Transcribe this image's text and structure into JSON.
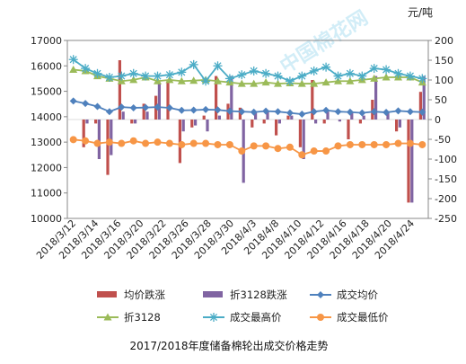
{
  "chart_data": {
    "type": "bar+line",
    "title": "2017/2018年度储备棉轮出成交价格走势",
    "unit_label": "元/吨",
    "watermark": "中国棉花网",
    "x_tick_labels": [
      "2018/3/12",
      "2018/3/14",
      "2018/3/16",
      "2018/3/20",
      "2018/3/22",
      "2018/3/26",
      "2018/3/28",
      "2018/3/30",
      "2018/4/3",
      "2018/4/8",
      "2018/4/10",
      "2018/4/12",
      "2018/4/16",
      "2018/4/18",
      "2018/4/20",
      "2018/4/24"
    ],
    "y_left": {
      "min": 10000,
      "max": 17000,
      "ticks": [
        "10000",
        "11000",
        "12000",
        "13000",
        "14000",
        "15000",
        "16000",
        "17000"
      ]
    },
    "y_right": {
      "min": -250,
      "max": 200,
      "ticks": [
        "-250",
        "-200",
        "-150",
        "-100",
        "-50",
        "0",
        "50",
        "100",
        "150",
        "200"
      ]
    },
    "x_count": 30,
    "series": [
      {
        "name": "均价跌涨",
        "kind": "bar",
        "axis": "right",
        "color": "#c0504d",
        "values": [
          0,
          -70,
          -10,
          -140,
          150,
          -10,
          40,
          60,
          100,
          -110,
          -20,
          10,
          110,
          40,
          30,
          -20,
          -10,
          -40,
          10,
          -70,
          100,
          -10,
          0,
          -50,
          -10,
          50,
          0,
          -30,
          -210,
          70
        ]
      },
      {
        "name": "折3128跌涨",
        "kind": "bar",
        "axis": "right",
        "color": "#8064a2",
        "values": [
          0,
          -10,
          -100,
          -90,
          20,
          -10,
          20,
          90,
          0,
          -30,
          -15,
          -30,
          10,
          110,
          -160,
          20,
          20,
          -10,
          10,
          -100,
          -10,
          20,
          -5,
          20,
          10,
          110,
          20,
          -20,
          -210,
          110
        ]
      },
      {
        "name": "成交均价",
        "kind": "line",
        "axis": "left",
        "color": "#4f81bd",
        "marker": "diamond",
        "values": [
          14620,
          14520,
          14400,
          14200,
          14380,
          14350,
          14360,
          14380,
          14350,
          14250,
          14260,
          14280,
          14270,
          14220,
          14200,
          14180,
          14220,
          14200,
          14150,
          14100,
          14200,
          14250,
          14200,
          14180,
          14150,
          14200,
          14170,
          14230,
          14200,
          14180
        ]
      },
      {
        "name": "折3128",
        "kind": "line",
        "axis": "left",
        "color": "#9bbb59",
        "marker": "triangle",
        "values": [
          15850,
          15800,
          15600,
          15500,
          15400,
          15450,
          15550,
          15400,
          15450,
          15400,
          15420,
          15450,
          15400,
          15350,
          15300,
          15300,
          15350,
          15300,
          15320,
          15300,
          15300,
          15350,
          15400,
          15400,
          15450,
          15500,
          15550,
          15550,
          15550,
          15350
        ]
      },
      {
        "name": "成交最高价",
        "kind": "line",
        "axis": "left",
        "color": "#4bacc6",
        "marker": "star",
        "values": [
          16250,
          15900,
          15700,
          15550,
          15600,
          15700,
          15600,
          15600,
          15650,
          15750,
          16050,
          15400,
          16000,
          15500,
          15650,
          15800,
          15700,
          15600,
          15400,
          15600,
          15800,
          15950,
          15600,
          15700,
          15600,
          15900,
          15850,
          15700,
          15600,
          15500
        ]
      },
      {
        "name": "成交最低价",
        "kind": "line",
        "axis": "left",
        "color": "#f79646",
        "marker": "circle",
        "values": [
          13100,
          13050,
          12950,
          13000,
          12950,
          13050,
          12950,
          13000,
          12950,
          12900,
          12950,
          12950,
          12900,
          12900,
          12650,
          12850,
          12850,
          12750,
          12800,
          12500,
          12650,
          12650,
          12850,
          12900,
          12900,
          12900,
          12900,
          12950,
          12950,
          12900
        ]
      }
    ],
    "legend": [
      "均价跌涨",
      "折3128跌涨",
      "成交均价",
      "折3128",
      "成交最高价",
      "成交最低价"
    ],
    "legend_position": "bottom",
    "grid": false
  }
}
